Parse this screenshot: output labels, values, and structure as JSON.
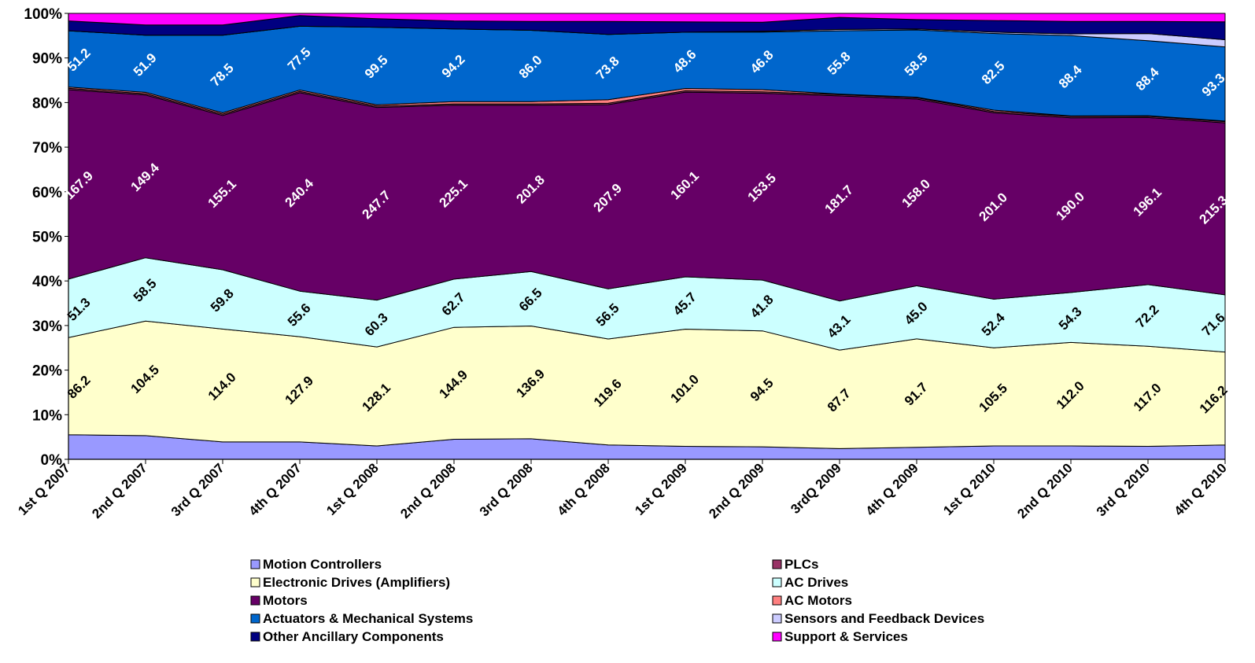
{
  "chart_data": {
    "type": "area",
    "stacked": "percent",
    "title": "",
    "xlabel": "",
    "ylabel": "",
    "ylim": [
      0,
      100
    ],
    "grid": false,
    "legend_position": "bottom",
    "y_ticks": [
      "0%",
      "10%",
      "20%",
      "30%",
      "40%",
      "50%",
      "60%",
      "70%",
      "80%",
      "90%",
      "100%"
    ],
    "categories": [
      "1st Q 2007",
      "2nd Q 2007",
      "3rd Q 2007",
      "4th Q 2007",
      "1st Q 2008",
      "2nd Q 2008",
      "3rd Q 2008",
      "4th Q 2008",
      "1st Q 2009",
      "2nd Q 2009",
      "3rdQ 2009",
      "4th Q 2009",
      "1st Q 2010",
      "2nd Q 2010",
      "3rd Q 2010",
      "4th Q 2010"
    ],
    "series": [
      {
        "name": "Motion Controllers",
        "color": "#9999ff",
        "shares": [
          5.5,
          5.3,
          3.9,
          3.9,
          3.0,
          4.5,
          4.6,
          3.2,
          2.9,
          2.8,
          2.4,
          2.7,
          3.0,
          3.0,
          2.9,
          3.2
        ]
      },
      {
        "name": "Electronic Drives (Amplifiers)",
        "color": "#ffffcc",
        "labels": [
          "86.2",
          "104.5",
          "114.0",
          "127.9",
          "128.1",
          "144.9",
          "136.9",
          "119.6",
          "101.0",
          "94.5",
          "87.7",
          "91.7",
          "105.5",
          "112.0",
          "117.0",
          "116.2"
        ],
        "shares": [
          21.8,
          25.7,
          25.3,
          23.6,
          22.2,
          25.1,
          25.3,
          23.7,
          26.2,
          26.0,
          22.1,
          24.3,
          22.0,
          23.2,
          22.4,
          20.8
        ]
      },
      {
        "name": "AC Drives",
        "color": "#ccffff",
        "labels": [
          "51.3",
          "58.5",
          "59.8",
          "55.6",
          "60.3",
          "62.7",
          "66.5",
          "56.5",
          "45.7",
          "41.8",
          "43.1",
          "45.0",
          "52.4",
          "54.3",
          "72.2",
          "71.6"
        ],
        "shares": [
          13.1,
          14.2,
          13.3,
          10.2,
          10.5,
          10.8,
          12.2,
          11.2,
          11.7,
          11.4,
          11.0,
          11.9,
          10.9,
          11.2,
          13.8,
          12.8
        ]
      },
      {
        "name": "Motors",
        "color": "#660066",
        "labels": [
          "167.9",
          "149.4",
          "155.1",
          "240.4",
          "247.7",
          "225.1",
          "201.8",
          "207.9",
          "160.1",
          "153.5",
          "181.7",
          "158.0",
          "201.0",
          "190.0",
          "196.1",
          "215.3"
        ],
        "shares": [
          42.5,
          36.5,
          34.6,
          44.5,
          43.2,
          39.0,
          37.3,
          41.2,
          41.3,
          41.9,
          46.0,
          41.9,
          41.8,
          39.2,
          37.4,
          38.5
        ]
      },
      {
        "name": "PLCs",
        "color": "#993366",
        "shares": [
          0.3,
          0.3,
          0.3,
          0.3,
          0.3,
          0.3,
          0.3,
          0.3,
          0.3,
          0.3,
          0.3,
          0.3,
          0.3,
          0.3,
          0.3,
          0.3
        ]
      },
      {
        "name": "AC Motors",
        "color": "#ff8080",
        "shares": [
          0.3,
          0.3,
          0.3,
          0.3,
          0.3,
          0.5,
          0.5,
          0.8,
          0.5,
          0.5,
          0.1,
          0.1,
          0.3,
          0.1,
          0.1,
          0.1
        ]
      },
      {
        "name": "Actuators & Mechanical Systems",
        "color": "#0066cc",
        "labels": [
          "51.2",
          "51.9",
          "78.5",
          "77.5",
          "99.5",
          "94.2",
          "86.0",
          "73.8",
          "48.6",
          "46.8",
          "55.8",
          "58.5",
          "82.5",
          "88.4",
          "88.4",
          "93.3"
        ],
        "shares": [
          12.6,
          12.8,
          17.4,
          14.3,
          17.4,
          16.3,
          16.0,
          14.6,
          12.6,
          12.9,
          14.2,
          15.1,
          17.2,
          18.0,
          16.8,
          16.6
        ]
      },
      {
        "name": "Sensors and Feedback Devices",
        "color": "#ccccff",
        "shares": [
          0.0,
          0.0,
          0.0,
          0.0,
          0.0,
          0.0,
          0.0,
          0.0,
          0.0,
          0.2,
          0.3,
          0.2,
          0.3,
          0.4,
          1.6,
          1.6
        ]
      },
      {
        "name": "Other Ancillary Components",
        "color": "#000080",
        "shares": [
          2.2,
          2.3,
          2.3,
          2.4,
          1.9,
          1.8,
          2.0,
          2.9,
          2.3,
          2.0,
          2.7,
          2.1,
          2.6,
          2.8,
          2.7,
          4.0
        ]
      },
      {
        "name": "Support & Services",
        "color": "#ff00ff",
        "shares": [
          1.7,
          2.6,
          2.6,
          0.5,
          1.2,
          1.7,
          1.8,
          1.8,
          1.9,
          2.0,
          0.9,
          1.4,
          1.6,
          1.8,
          1.8,
          1.9
        ]
      }
    ],
    "legend": {
      "left": [
        "Motion Controllers",
        "Electronic Drives (Amplifiers)",
        "Motors",
        "Actuators & Mechanical Systems",
        "Other Ancillary Components"
      ],
      "right": [
        "PLCs",
        "AC Drives",
        "AC Motors",
        "Sensors and Feedback Devices",
        "Support & Services"
      ]
    },
    "label_colors": {
      "Electronic Drives (Amplifiers)": "#000000",
      "AC Drives": "#000000",
      "Motors": "#ffffff",
      "Actuators & Mechanical Systems": "#ffffff"
    }
  }
}
